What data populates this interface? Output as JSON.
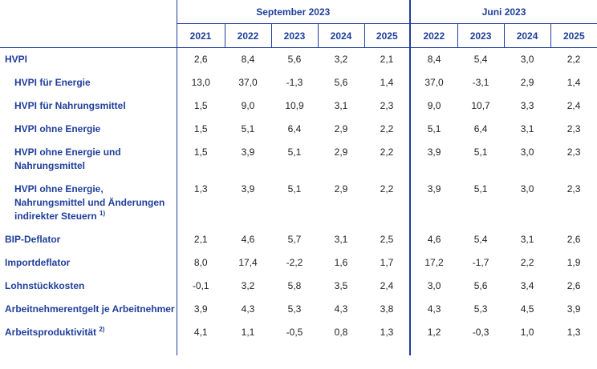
{
  "header": {
    "group_sep": "September 2023",
    "group_jun": "Juni 2023",
    "years_sep": [
      "2021",
      "2022",
      "2023",
      "2024",
      "2025"
    ],
    "years_jun": [
      "2022",
      "2023",
      "2024",
      "2025"
    ]
  },
  "rows": [
    {
      "label": "HVPI",
      "sup": "",
      "sub": false,
      "sep": [
        "2,6",
        "8,4",
        "5,6",
        "3,2",
        "2,1"
      ],
      "jun": [
        "8,4",
        "5,4",
        "3,0",
        "2,2"
      ]
    },
    {
      "label": "HVPI für Energie",
      "sup": "",
      "sub": true,
      "sep": [
        "13,0",
        "37,0",
        "-1,3",
        "5,6",
        "1,4"
      ],
      "jun": [
        "37,0",
        "-3,1",
        "2,9",
        "1,4"
      ]
    },
    {
      "label": "HVPI für Nahrungsmittel",
      "sup": "",
      "sub": true,
      "sep": [
        "1,5",
        "9,0",
        "10,9",
        "3,1",
        "2,3"
      ],
      "jun": [
        "9,0",
        "10,7",
        "3,3",
        "2,4"
      ]
    },
    {
      "label": "HVPI ohne Energie",
      "sup": "",
      "sub": true,
      "sep": [
        "1,5",
        "5,1",
        "6,4",
        "2,9",
        "2,2"
      ],
      "jun": [
        "5,1",
        "6,4",
        "3,1",
        "2,3"
      ]
    },
    {
      "label": "HVPI ohne Energie und Nahrungsmittel",
      "sup": "",
      "sub": true,
      "sep": [
        "1,5",
        "3,9",
        "5,1",
        "2,9",
        "2,2"
      ],
      "jun": [
        "3,9",
        "5,1",
        "3,0",
        "2,3"
      ]
    },
    {
      "label": "HVPI ohne Energie, Nahrungsmittel und Änderungen indirekter Steuern",
      "sup": "1)",
      "sub": true,
      "sep": [
        "1,3",
        "3,9",
        "5,1",
        "2,9",
        "2,2"
      ],
      "jun": [
        "3,9",
        "5,1",
        "3,0",
        "2,3"
      ]
    },
    {
      "label": "BIP-Deflator",
      "sup": "",
      "sub": false,
      "sep": [
        "2,1",
        "4,6",
        "5,7",
        "3,1",
        "2,5"
      ],
      "jun": [
        "4,6",
        "5,4",
        "3,1",
        "2,6"
      ]
    },
    {
      "label": "Importdeflator",
      "sup": "",
      "sub": false,
      "sep": [
        "8,0",
        "17,4",
        "-2,2",
        "1,6",
        "1,7"
      ],
      "jun": [
        "17,2",
        "-1,7",
        "2,2",
        "1,9"
      ]
    },
    {
      "label": "Lohnstückkosten",
      "sup": "",
      "sub": false,
      "sep": [
        "-0,1",
        "3,2",
        "5,8",
        "3,5",
        "2,4"
      ],
      "jun": [
        "3,0",
        "5,6",
        "3,4",
        "2,6"
      ]
    },
    {
      "label": "Arbeitnehmerentgelt je Arbeitnehmer",
      "sup": "",
      "sub": false,
      "sep": [
        "3,9",
        "4,3",
        "5,3",
        "4,3",
        "3,8"
      ],
      "jun": [
        "4,3",
        "5,3",
        "4,5",
        "3,9"
      ]
    },
    {
      "label": "Arbeitsproduktivität",
      "sup": "2)",
      "sub": false,
      "sep": [
        "4,1",
        "1,1",
        "-0,5",
        "0,8",
        "1,3"
      ],
      "jun": [
        "1,2",
        "-0,3",
        "1,0",
        "1,3"
      ]
    }
  ]
}
